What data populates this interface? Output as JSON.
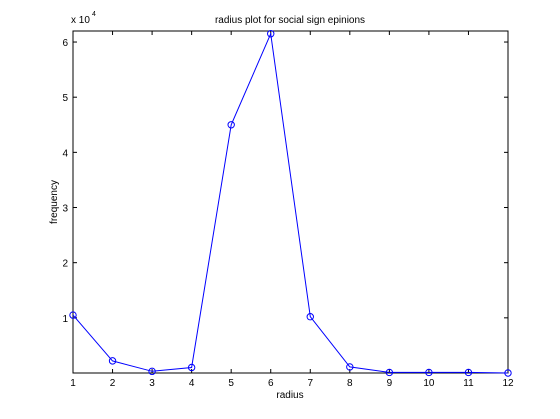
{
  "chart_data": {
    "type": "line",
    "title": "radius plot for social sign epinions",
    "xlabel": "radius",
    "ylabel": "frequency",
    "x": [
      1,
      2,
      3,
      4,
      5,
      6,
      7,
      8,
      9,
      10,
      11,
      12
    ],
    "series": [
      {
        "values": [
          10500,
          2200,
          300,
          1000,
          45000,
          61500,
          10200,
          1100,
          100,
          100,
          100,
          0
        ],
        "color": "#0000ff",
        "marker": "circle"
      }
    ],
    "xlim": [
      1,
      12
    ],
    "ylim": [
      0,
      62000
    ],
    "xticks": [
      1,
      2,
      3,
      4,
      5,
      6,
      7,
      8,
      9,
      10,
      11,
      12
    ],
    "yticks": [
      10000,
      20000,
      30000,
      40000,
      50000,
      60000
    ],
    "ytick_labels": [
      "1",
      "2",
      "3",
      "4",
      "5",
      "6"
    ],
    "y_multiplier": {
      "base": "x 10",
      "exponent": "4"
    },
    "grid": false,
    "axes_color": "#000000"
  }
}
